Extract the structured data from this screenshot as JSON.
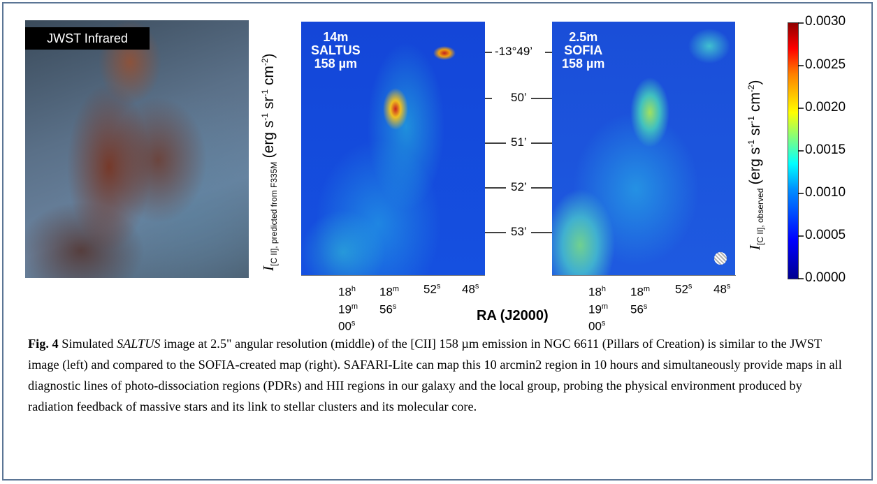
{
  "jwst_panel": {
    "label": "JWST Infrared"
  },
  "saltus_panel": {
    "label_line1": "14m",
    "label_line2": "SALTUS",
    "label_line3": "158 µm"
  },
  "sofia_panel": {
    "label_line1": "2.5m",
    "label_line2": "SOFIA",
    "label_line3": "158 µm"
  },
  "dec_ticks": [
    "-13°49’",
    "50’",
    "51’",
    "52’",
    "53’"
  ],
  "ra_ticks": [
    {
      "line1": "18",
      "line1_sup": "h",
      "line2": "19",
      "line2_sup": "m",
      "line3": "00",
      "line3_sup": "s"
    },
    {
      "line1": "18",
      "line1_sup": "m",
      "line2": "56",
      "line2_sup": "s"
    },
    {
      "line1": "52",
      "line1_sup": "s"
    },
    {
      "line1": "48",
      "line1_sup": "s"
    }
  ],
  "xlabel": "RA (J2000)",
  "left_ylabel": {
    "symbol": "I",
    "sub": "[C II], predicted from F335M",
    "units": "(erg s",
    "u1": "-1",
    "u2": " sr",
    "u3": "-1",
    "u4": " cm",
    "u5": "-2",
    "u6": ")"
  },
  "right_ylabel": {
    "symbol": "I",
    "sub": "[C II], observed",
    "units": "(erg s",
    "u1": "-1",
    "u2": " sr",
    "u3": "-1",
    "u4": " cm",
    "u5": "-2",
    "u6": ")"
  },
  "colorbar": {
    "ticks": [
      "0.0030",
      "0.0025",
      "0.0020",
      "0.0015",
      "0.0010",
      "0.0005",
      "0.0000"
    ],
    "colormap": [
      "#00008f",
      "#0000ff",
      "#00ffff",
      "#ffff00",
      "#ff0000",
      "#8f0000"
    ]
  },
  "caption": {
    "label": "Fig. 4",
    "text_a": " Simulated ",
    "text_italic": "SALTUS",
    "text_b": " image at 2.5\" angular resolution (middle) of the [CII] 158 µm emission in NGC 6611 (Pillars of Creation) is similar to the JWST image (left) and compared to the SOFIA-created map (right). SAFARI-Lite can map this 10 arcmin2 region in 10 hours and simultaneously provide maps in all diagnostic lines of photo-dissociation regions (PDRs) and HII regions in our galaxy and the local group, probing the physical environment produced by radiation feedback of massive stars and its link to stellar clusters and its molecular core."
  }
}
